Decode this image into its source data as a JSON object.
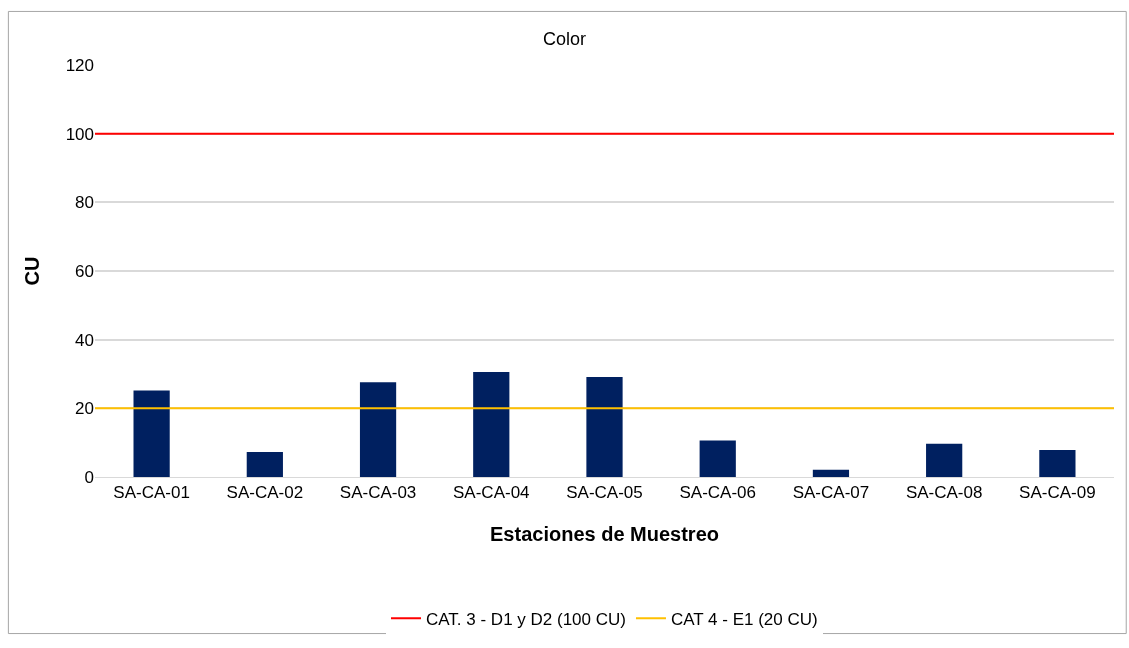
{
  "chart_data": {
    "type": "bar",
    "title": "Color",
    "xlabel": "Estaciones de Muestreo",
    "ylabel": "CU",
    "categories": [
      "SA-CA-01",
      "SA-CA-02",
      "SA-CA-03",
      "SA-CA-04",
      "SA-CA-05",
      "SA-CA-06",
      "SA-CA-07",
      "SA-CA-08",
      "SA-CA-09"
    ],
    "series": [
      {
        "color": "#002060",
        "values": [
          25.2,
          7.3,
          27.6,
          30.6,
          29.1,
          10.6,
          2.1,
          9.7,
          7.9
        ]
      }
    ],
    "ylim": [
      0,
      120
    ],
    "yticks": [
      0,
      20,
      40,
      60,
      80,
      100,
      120
    ],
    "grid": "y",
    "legend": "bottom",
    "ref_lines": [
      {
        "axis": "y",
        "value": 100,
        "label": "CAT. 3 - D1 y D2 (100 CU)",
        "color": "#ff0000"
      },
      {
        "axis": "y",
        "value": 20,
        "label": "CAT 4 - E1 (20 CU)",
        "color": "#ffc000"
      }
    ]
  }
}
